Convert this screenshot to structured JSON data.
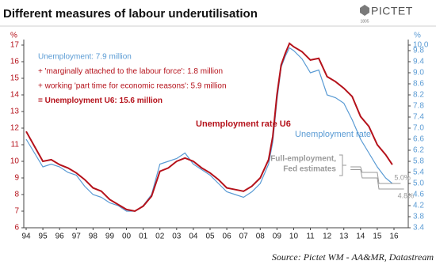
{
  "chart_data": {
    "type": "line",
    "title": "Different measures of labour underutilisation",
    "logo": "PICTET",
    "logo_year": "1805",
    "source": "Source: Pictet WM - AA&MR, Datastream",
    "y_unit": "%",
    "y2_unit": "%",
    "xlim": [
      1994,
      2016.8
    ],
    "xticks": [
      {
        "value": 1994,
        "label": "94"
      },
      {
        "value": 1995,
        "label": "95"
      },
      {
        "value": 1996,
        "label": "96"
      },
      {
        "value": 1997,
        "label": "97"
      },
      {
        "value": 1998,
        "label": "98"
      },
      {
        "value": 1999,
        "label": "99"
      },
      {
        "value": 2000,
        "label": "00"
      },
      {
        "value": 2001,
        "label": "01"
      },
      {
        "value": 2002,
        "label": "02"
      },
      {
        "value": 2003,
        "label": "03"
      },
      {
        "value": 2004,
        "label": "04"
      },
      {
        "value": 2005,
        "label": "05"
      },
      {
        "value": 2006,
        "label": "06"
      },
      {
        "value": 2007,
        "label": "07"
      },
      {
        "value": 2008,
        "label": "08"
      },
      {
        "value": 2009,
        "label": "09"
      },
      {
        "value": 2010,
        "label": "10"
      },
      {
        "value": 2011,
        "label": "11"
      },
      {
        "value": 2012,
        "label": "12"
      },
      {
        "value": 2013,
        "label": "13"
      },
      {
        "value": 2014,
        "label": "14"
      },
      {
        "value": 2015,
        "label": "15"
      },
      {
        "value": 2016,
        "label": "16"
      }
    ],
    "ylim": [
      6,
      17
    ],
    "yticks": [
      6,
      7,
      8,
      9,
      10,
      11,
      12,
      13,
      14,
      15,
      16,
      17
    ],
    "y2lim": [
      3.4,
      10
    ],
    "y2ticks": [
      3.4,
      3.8,
      4.2,
      4.6,
      {
        "value": 5,
        "label": "5.0"
      },
      5.4,
      5.8,
      6.2,
      6.6,
      {
        "value": 7,
        "label": "7.0"
      },
      7.4,
      7.8,
      8.2,
      8.6,
      {
        "value": 9,
        "label": "9.0"
      },
      9.4,
      9.8,
      {
        "value": 10,
        "label": "10.0"
      }
    ],
    "x": [
      1994.0,
      1994.5,
      1995.0,
      1995.5,
      1996.0,
      1996.5,
      1997.0,
      1997.5,
      1998.0,
      1998.5,
      1999.0,
      1999.5,
      2000.0,
      2000.5,
      2001.0,
      2001.5,
      2002.0,
      2002.5,
      2003.0,
      2003.5,
      2004.0,
      2004.5,
      2005.0,
      2005.5,
      2006.0,
      2006.5,
      2007.0,
      2007.5,
      2008.0,
      2008.5,
      2008.75,
      2009.0,
      2009.25,
      2009.5,
      2009.75,
      2010.0,
      2010.5,
      2011.0,
      2011.5,
      2012.0,
      2012.5,
      2013.0,
      2013.5,
      2014.0,
      2014.5,
      2015.0,
      2015.5,
      2015.9
    ],
    "series": [
      {
        "name": "Unemployment rate U6",
        "color": "#b5121b",
        "axis": "y",
        "values": [
          11.8,
          10.9,
          10.0,
          10.1,
          9.8,
          9.6,
          9.3,
          8.9,
          8.4,
          8.2,
          7.7,
          7.4,
          7.1,
          7.0,
          7.3,
          7.9,
          9.4,
          9.6,
          10.0,
          10.2,
          10.0,
          9.6,
          9.3,
          8.9,
          8.4,
          8.3,
          8.2,
          8.5,
          9.0,
          10.1,
          11.5,
          14.0,
          15.8,
          16.5,
          17.1,
          16.9,
          16.6,
          16.1,
          16.2,
          15.1,
          14.8,
          14.4,
          13.9,
          12.7,
          12.1,
          11.0,
          10.4,
          9.8
        ]
      },
      {
        "name": "Unemployment rate",
        "color": "#5a9bd4",
        "axis": "y2",
        "values": [
          6.6,
          6.1,
          5.6,
          5.7,
          5.6,
          5.4,
          5.3,
          4.9,
          4.6,
          4.5,
          4.3,
          4.2,
          4.0,
          4.0,
          4.2,
          4.6,
          5.7,
          5.8,
          5.9,
          6.1,
          5.7,
          5.5,
          5.3,
          5.0,
          4.7,
          4.6,
          4.5,
          4.7,
          5.0,
          5.7,
          6.5,
          8.0,
          9.2,
          9.6,
          9.9,
          9.8,
          9.5,
          9.0,
          9.1,
          8.2,
          8.1,
          7.9,
          7.3,
          6.6,
          6.1,
          5.6,
          5.2,
          5.0
        ]
      }
    ],
    "fed_estimates": {
      "label_lines": [
        "Full-employment,",
        "Fed estimates"
      ],
      "color": "#9a9a9a",
      "series": [
        {
          "axis": "y2",
          "x": [
            2013.4,
            2014.0,
            2014.1,
            2015.0,
            2015.1,
            2016.4
          ],
          "values": [
            5.6,
            5.6,
            5.4,
            5.4,
            5.0,
            5.0
          ],
          "value_labels": [
            null,
            null,
            null,
            null,
            null,
            "5.0%"
          ]
        },
        {
          "axis": "y2",
          "x": [
            2013.4,
            2014.0,
            2014.1,
            2015.0,
            2015.1,
            2016.6
          ],
          "values": [
            5.5,
            5.5,
            5.2,
            5.2,
            4.8,
            4.8
          ],
          "value_labels": [
            null,
            null,
            null,
            null,
            null,
            "4.8%"
          ]
        }
      ]
    },
    "annotations": [
      {
        "text": "Unemployment:  7.9 million",
        "color": "#5a9bd4",
        "bold": false
      },
      {
        "text": "+ 'marginally attached to the labour force': 1.8 million",
        "color": "#b5121b",
        "bold": false
      },
      {
        "text": "+ working 'part time for economic reasons': 5.9 million",
        "color": "#b5121b",
        "bold": false
      },
      {
        "text": "= Unemployment U6: 15.6 million",
        "color": "#b5121b",
        "bold": true
      }
    ]
  }
}
